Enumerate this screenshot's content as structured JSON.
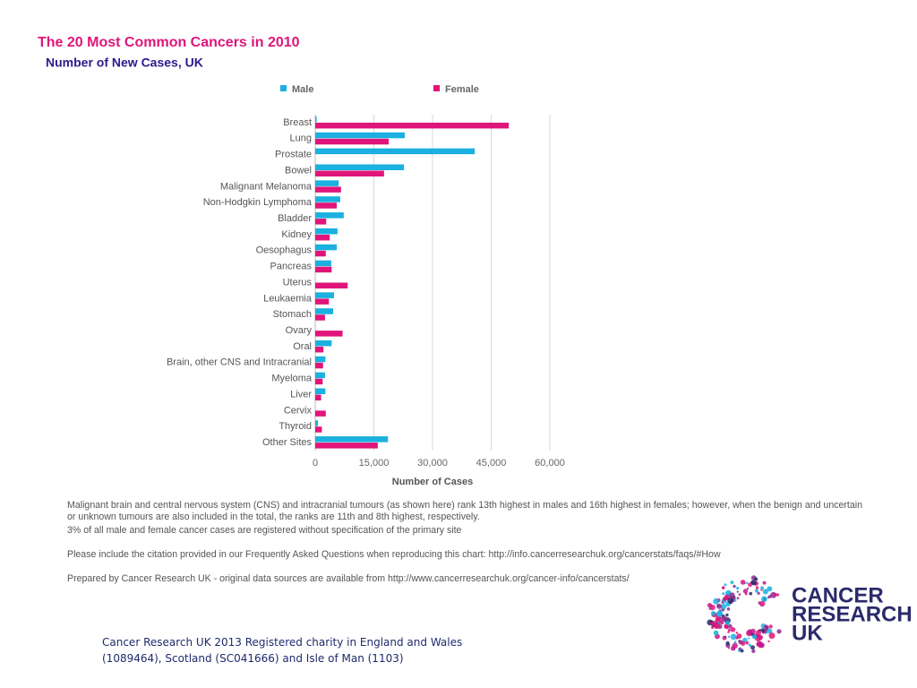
{
  "chart_data": {
    "type": "bar",
    "orientation": "horizontal",
    "title": "The 20 Most Common Cancers in 2010",
    "subtitle": "Number of New Cases, UK",
    "x_label": "Number of Cases",
    "categories": [
      "Breast",
      "Lung",
      "Prostate",
      "Bowel",
      "Malignant Melanoma",
      "Non-Hodgkin Lymphoma",
      "Bladder",
      "Kidney",
      "Oesophagus",
      "Pancreas",
      "Uterus",
      "Leukaemia",
      "Stomach",
      "Ovary",
      "Oral",
      "Brain, other CNS and Intracranial",
      "Myeloma",
      "Liver",
      "Cervix",
      "Thyroid",
      "Other Sites"
    ],
    "series": [
      {
        "name": "Male",
        "color": "#1ab0e0",
        "values": [
          350,
          22900,
          40800,
          22700,
          6000,
          6400,
          7300,
          5700,
          5500,
          4100,
          null,
          4800,
          4600,
          null,
          4200,
          2600,
          2500,
          2600,
          null,
          700,
          18600
        ]
      },
      {
        "name": "Female",
        "color": "#e0157a",
        "values": [
          49500,
          18800,
          null,
          17600,
          6600,
          5500,
          2800,
          3700,
          2700,
          4200,
          8300,
          3500,
          2500,
          7000,
          2100,
          2000,
          1900,
          1500,
          2700,
          1700,
          16000
        ]
      }
    ],
    "xlim": [
      0,
      60000
    ],
    "xticks": [
      0,
      {
        "value": 15000,
        "label": "15,000"
      },
      {
        "value": 30000,
        "label": "30,000"
      },
      {
        "value": 45000,
        "label": "45,000"
      },
      {
        "value": 60000,
        "label": "60,000"
      }
    ],
    "grid": true,
    "legend": "top"
  },
  "notes": [
    "Malignant brain and central nervous system (CNS) and intracranial tumours (as shown here) rank 13th highest in males and 16th highest in females; however, when the benign and uncertain or unknown tumours are also included in the total, the ranks are 11th and 8th highest, respectively.",
    "3% of all male and female cancer cases are registered without specification of the primary site",
    "Please include the citation provided in our Frequently Asked Questions when reproducing this chart: http://info.cancerresearchuk.org/cancerstats/faqs/#How",
    "Prepared by Cancer Research UK - original data sources are available from http://www.cancerresearchuk.org/cancer-info/cancerstats/"
  ],
  "footer": [
    "Cancer Research UK 2013 Registered charity in England and Wales",
    "(1089464), Scotland (SC041666) and Isle of Man (1103)"
  ],
  "logo": [
    "CANCER",
    "RESEARCH",
    "UK"
  ]
}
